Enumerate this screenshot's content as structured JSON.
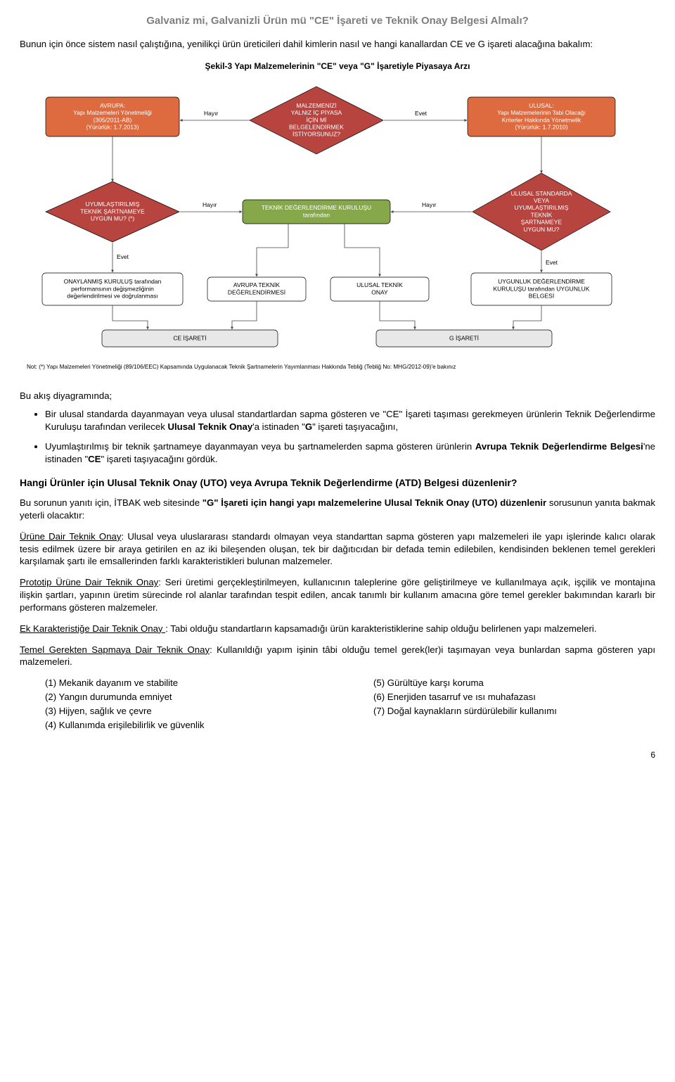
{
  "header": "Galvaniz mi, Galvanizli Ürün mü \"CE\" İşareti ve Teknik Onay Belgesi Almalı?",
  "intro": "Bunun için önce sistem nasıl çalıştığına, yenilikçi ürün üreticileri dahil kimlerin nasıl ve hangi kanallardan CE ve G işareti alacağına bakalım:",
  "chart": {
    "title": "Şekil-3 Yapı Malzemelerinin \"CE\" veya \"G\" İşaretiyle Piyasaya Arzı",
    "colors": {
      "orange": "#dd6b3f",
      "orange_border": "#b04f2b",
      "red": "#b8443f",
      "green": "#86a84b",
      "white": "#ffffff",
      "gray": "#e8e8e8",
      "text_dark": "#000000",
      "text_white": "#ffffff"
    },
    "nodes": {
      "avrupa": {
        "type": "box",
        "fill": "orange",
        "lines": [
          "AVRUPA:",
          "Yapı Malzemeleri Yönetmeliği",
          "(305/2011-AB)",
          "(Yürürlük: 1.7.2013)"
        ]
      },
      "q1": {
        "type": "diamond",
        "fill": "red",
        "lines": [
          "MALZEMENİZİ",
          "YALNIZ İÇ PİYASA",
          "İÇİN Mİ",
          "BELGELENDİRMEK",
          "İSTİYORSUNUZ?"
        ]
      },
      "ulusal": {
        "type": "box",
        "fill": "orange",
        "lines": [
          "ULUSAL:",
          "Yapı Malzemelerinin Tabi Olacağı",
          "Kriterler Hakkında Yönetmelik",
          "(Yürürlük: 1.7.2010)"
        ]
      },
      "q2": {
        "type": "diamond",
        "fill": "red",
        "lines": [
          "UYUMLAŞTIRILMIŞ",
          "TEKNİK ŞARTNAMEYE",
          "UYGUN MU? (*)"
        ]
      },
      "tdk": {
        "type": "box",
        "fill": "green",
        "lines": [
          "TEKNİK DEĞERLENDİRME KURULUŞU",
          "tarafından"
        ]
      },
      "q3": {
        "type": "diamond",
        "fill": "red",
        "lines": [
          "ULUSAL STANDARDA",
          "VEYA",
          "UYUMLAŞTIRILMIŞ",
          "TEKNİK",
          "ŞARTNAMEYE",
          "UYGUN MU?"
        ]
      },
      "onay": {
        "type": "box",
        "fill": "white",
        "lines": [
          "ONAYLANMIŞ KURULUŞ tarafından",
          "performansının değişmezliğinin",
          "değerlendirilmesi ve doğrulanması"
        ]
      },
      "atd": {
        "type": "box",
        "fill": "white",
        "lines": [
          "AVRUPA TEKNİK",
          "DEĞERLENDİRMESİ"
        ]
      },
      "uto": {
        "type": "box",
        "fill": "white",
        "lines": [
          "ULUSAL TEKNİK",
          "ONAY"
        ]
      },
      "udk": {
        "type": "box",
        "fill": "white",
        "lines": [
          "UYGUNLUK DEĞERLENDİRME",
          "KURULUŞU tarafından UYGUNLUK",
          "BELGESİ"
        ]
      },
      "ce": {
        "type": "box",
        "fill": "gray",
        "lines": [
          "CE İŞARETİ"
        ]
      },
      "g": {
        "type": "box",
        "fill": "gray",
        "lines": [
          "G İŞARETİ"
        ]
      }
    },
    "edge_labels": {
      "hayir": "Hayır",
      "evet": "Evet"
    },
    "footnote": "Not: (*) Yapı Malzemeleri Yönetmeliği (89/106/EEC) Kapsamında Uygulanacak Teknik Şartnamelerin Yayımlanması Hakkında Tebliğ (Tebliğ No: MHG/2012-09)'e bakınız"
  },
  "diagram_intro": "Bu akış diyagramında;",
  "bullets": [
    "Bir ulusal standarda dayanmayan veya ulusal standartlardan sapma gösteren ve \"CE\" İşareti taşıması gerekmeyen ürünlerin Teknik Değerlendirme Kuruluşu tarafından verilecek <b>Ulusal Teknik Onay</b>'a istinaden \"<b>G</b>\" işareti taşıyacağını,",
    "Uyumlaştırılmış bir teknik şartnameye dayanmayan veya bu şartnamelerden sapma gösteren ürünlerin <b>Avrupa Teknik Değerlendirme Belgesi</b>'ne istinaden \"<b>CE</b>\" işareti taşıyacağını gördük."
  ],
  "q_heading": "Hangi Ürünler için Ulusal Teknik Onay (UTO) veya Avrupa Teknik Değerlendirme (ATD) Belgesi düzenlenir?",
  "q_intro": "Bu sorunun yanıtı için, İTBAK web sitesinde <b>\"G\" İşareti için hangi yapı malzemelerine Ulusal Teknik Onay (UTO) düzenlenir</b> sorusunun yanıta bakmak yeterli olacaktır:",
  "defs": [
    {
      "term": "Ürüne Dair Teknik Onay",
      "body": ": Ulusal veya uluslararası standardı olmayan veya standarttan sapma gösteren yapı malzemeleri ile yapı işlerinde kalıcı olarak tesis edilmek üzere bir araya getirilen en az iki bileşenden oluşan, tek bir dağıtıcıdan bir defada temin edilebilen, kendisinden beklenen temel gerekleri karşılamak şartı ile emsallerinden farklı karakteristikleri bulunan malzemeler."
    },
    {
      "term": "Prototip Ürüne Dair Teknik Onay",
      "body": ": Seri üretimi gerçekleştirilmeyen, kullanıcının taleplerine göre geliştirilmeye ve kullanılmaya açık, işçilik ve montajına ilişkin şartları, yapının üretim sürecinde rol alanlar tarafından tespit edilen, ancak tanımlı bir kullanım amacına göre temel gerekler bakımından kararlı bir performans gösteren malzemeler."
    },
    {
      "term": "Ek Karakteristiğe Dair Teknik Onay ",
      "body": ": Tabi olduğu standartların kapsamadığı ürün karakteristiklerine sahip olduğu belirlenen yapı malzemeleri."
    },
    {
      "term": "Temel Gerekten Sapmaya Dair Teknik Onay",
      "body": ": Kullanıldığı yapım işinin tâbi olduğu temel gerek(ler)i taşımayan veya bunlardan sapma gösteren yapı malzemeleri."
    }
  ],
  "req_left": [
    "(1) Mekanik dayanım ve stabilite",
    "(2) Yangın durumunda emniyet",
    "(3) Hijyen, sağlık ve çevre",
    "(4) Kullanımda erişilebilirlik ve güvenlik"
  ],
  "req_right": [
    "(5) Gürültüye karşı koruma",
    "(6) Enerjiden tasarruf ve ısı muhafazası",
    "(7) Doğal kaynakların sürdürülebilir kullanımı"
  ],
  "page_num": "6"
}
